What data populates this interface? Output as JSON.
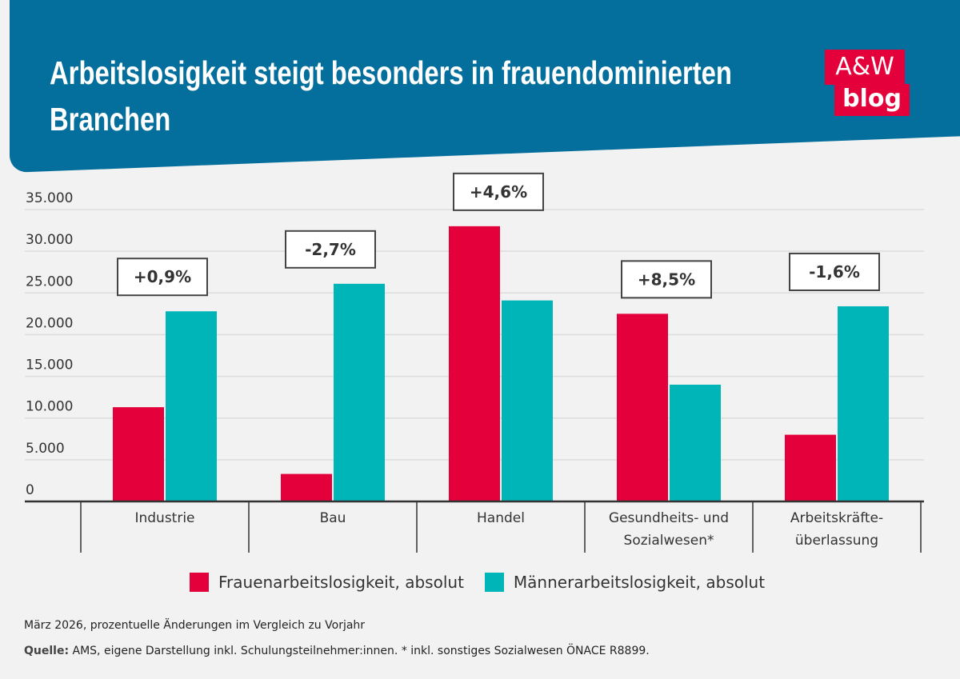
{
  "header": {
    "title_line1": "Arbeitslosigkeit steigt besonders in frauendominierten",
    "title_line2": "Branchen"
  },
  "logo": {
    "line1": "A&W",
    "line2": "blog"
  },
  "colors": {
    "header": "#046f9c",
    "women": "#e4003a",
    "men": "#00b5b8",
    "background": "#f2f2f2"
  },
  "chart_data": {
    "type": "bar",
    "categories": [
      [
        "Industrie"
      ],
      [
        "Bau"
      ],
      [
        "Handel"
      ],
      [
        "Gesundheits- und",
        "Sozialwesen*"
      ],
      [
        "Arbeitskräfte-",
        "überlassung"
      ]
    ],
    "series": [
      {
        "name": "Frauenarbeitslosigkeit, absolut",
        "color": "#e4003a",
        "values": [
          11300,
          3300,
          33000,
          22500,
          8000
        ]
      },
      {
        "name": "Männerarbeitslosigkeit, absolut",
        "color": "#00b5b8",
        "values": [
          22800,
          26100,
          24100,
          14000,
          23400
        ]
      }
    ],
    "annotations": [
      "+0,9%",
      "-2,7%",
      "+4,6%",
      "+8,5%",
      "-1,6%"
    ],
    "yticks": [
      0,
      5000,
      10000,
      15000,
      20000,
      25000,
      30000,
      35000
    ],
    "ytick_labels": [
      "0",
      "5.000",
      "10.000",
      "15.000",
      "20.000",
      "25.000",
      "30.000",
      "35.000"
    ],
    "ylim": [
      0,
      35000
    ],
    "grid": true,
    "legend_placement": "bottom"
  },
  "footer": {
    "note": "März 2026, prozentuelle Änderungen im Vergleich zu Vorjahr",
    "source_label": "Quelle:",
    "source_text": " AMS, eigene Darstellung inkl. Schulungsteilnehmer:innen. * inkl. sonstiges Sozialwesen ÖNACE R8899."
  }
}
